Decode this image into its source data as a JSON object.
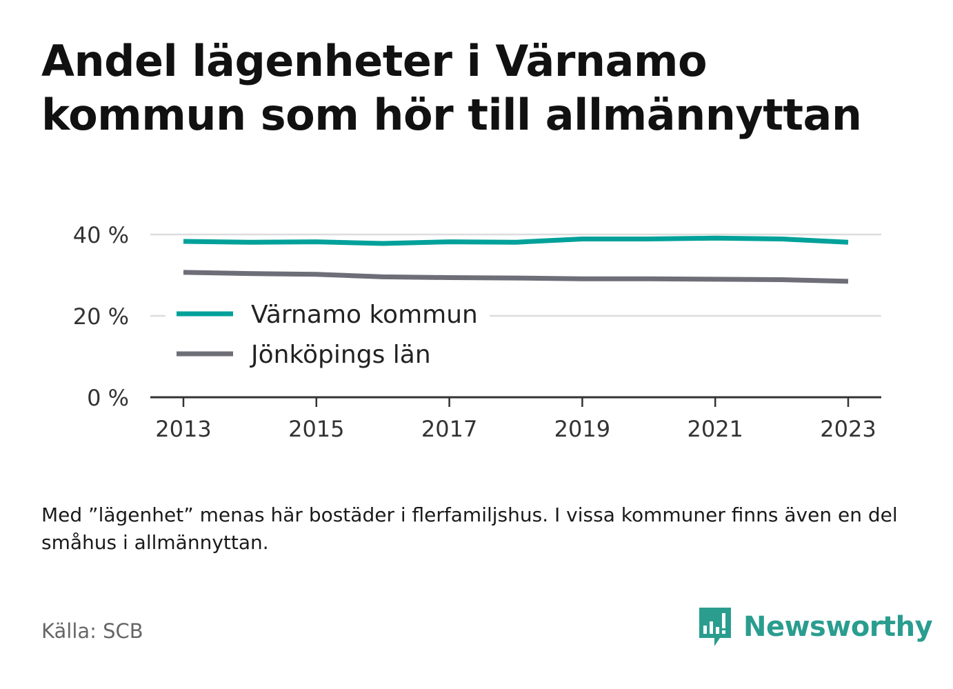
{
  "header": {
    "title": "Andel lägenheter i Värnamo kommun som hör till allmännyttan"
  },
  "note": "Med ”lägenhet” menas här bostäder i flerfamiljshus. I vissa kommuner finns även en del småhus i allmännyttan.",
  "source": "Källa: SCB",
  "logo": {
    "text": "Newsworthy",
    "icon": "bar-chart-speech-bubble-icon",
    "color": "#2a9d8f"
  },
  "chart_data": {
    "type": "line",
    "title": "Andel lägenheter i Värnamo kommun som hör till allmännyttan",
    "xlabel": "",
    "ylabel": "",
    "x": [
      2013,
      2014,
      2015,
      2016,
      2017,
      2018,
      2019,
      2020,
      2021,
      2022,
      2023
    ],
    "xticks": [
      "2013",
      "2015",
      "2017",
      "2019",
      "2021",
      "2023"
    ],
    "yticks": [
      "0 %",
      "20 %",
      "40 %"
    ],
    "ylim": [
      0,
      40
    ],
    "grid": true,
    "legend": "inside, lower-left",
    "series": [
      {
        "name": "Värnamo kommun",
        "color": "#00a19a",
        "values": [
          38.3,
          38.1,
          38.2,
          37.8,
          38.2,
          38.1,
          38.9,
          38.9,
          39.1,
          38.9,
          38.1
        ]
      },
      {
        "name": "Jönköpings län",
        "color": "#6e6e78",
        "values": [
          30.7,
          30.4,
          30.2,
          29.6,
          29.4,
          29.3,
          29.1,
          29.1,
          29.0,
          28.9,
          28.5
        ]
      }
    ]
  }
}
